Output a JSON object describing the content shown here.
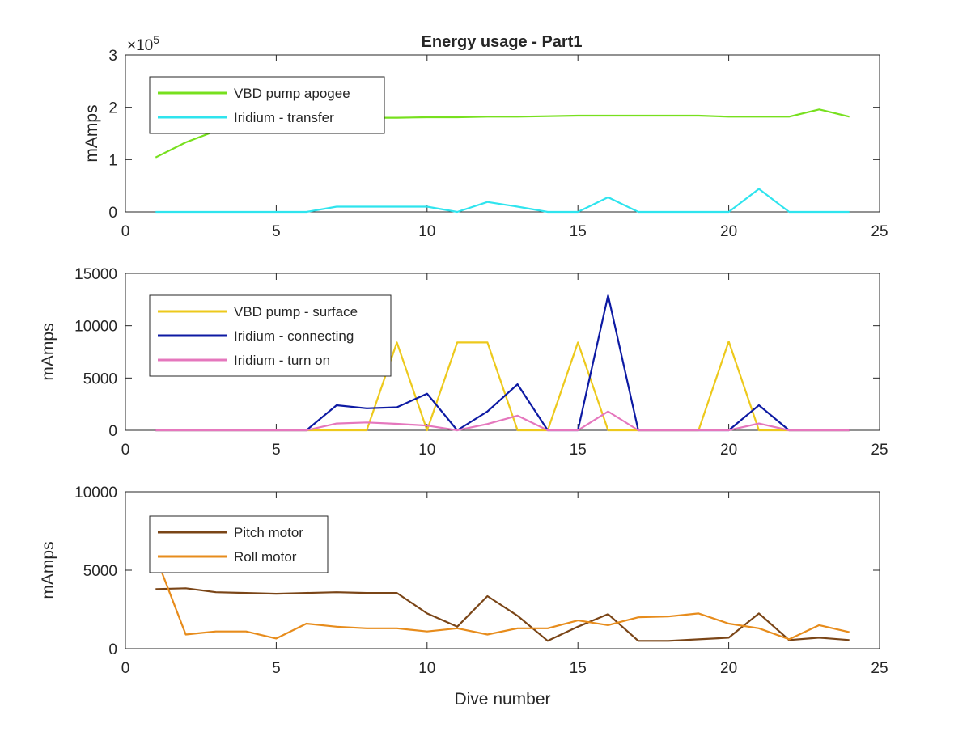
{
  "figure": {
    "title": "Energy usage - Part1",
    "xlabel": "Dive number"
  },
  "chart_data": [
    {
      "type": "line",
      "title": "Energy usage - Part1",
      "xlabel": "",
      "ylabel": "mAmps",
      "xlim": [
        0,
        25
      ],
      "ylim": [
        0,
        3
      ],
      "xticks": [
        0,
        5,
        10,
        15,
        20,
        25
      ],
      "yticks": [
        0,
        1,
        2,
        3
      ],
      "exponent_label": "×10^5",
      "exponent_base": "×10",
      "exponent_power": "5",
      "legend": "top-left",
      "grid": false,
      "x": [
        1,
        2,
        3,
        4,
        5,
        6,
        7,
        8,
        9,
        10,
        11,
        12,
        13,
        14,
        15,
        16,
        17,
        18,
        19,
        20,
        21,
        22,
        23,
        24
      ],
      "series": [
        {
          "name": "VBD pump apogee",
          "color": "#77e01e",
          "values": [
            1.04,
            1.33,
            1.55,
            1.72,
            1.78,
            1.8,
            1.8,
            1.8,
            1.8,
            1.81,
            1.81,
            1.82,
            1.82,
            1.83,
            1.84,
            1.84,
            1.84,
            1.84,
            1.84,
            1.82,
            1.82,
            1.82,
            1.96,
            1.82
          ]
        },
        {
          "name": "Iridium - transfer",
          "color": "#2fe4ee",
          "values": [
            0,
            0,
            0,
            0,
            0,
            0,
            0.1,
            0.1,
            0.1,
            0.1,
            0,
            0.19,
            0.1,
            0,
            0,
            0.28,
            0,
            0,
            0,
            0,
            0.44,
            0,
            0,
            0
          ]
        }
      ]
    },
    {
      "type": "line",
      "title": "",
      "xlabel": "",
      "ylabel": "mAmps",
      "xlim": [
        0,
        25
      ],
      "ylim": [
        0,
        15000
      ],
      "xticks": [
        0,
        5,
        10,
        15,
        20,
        25
      ],
      "yticks": [
        0,
        5000,
        10000,
        15000
      ],
      "legend": "top-left",
      "grid": false,
      "x": [
        1,
        2,
        3,
        4,
        5,
        6,
        7,
        8,
        9,
        10,
        11,
        12,
        13,
        14,
        15,
        16,
        17,
        18,
        19,
        20,
        21,
        22,
        23,
        24
      ],
      "series": [
        {
          "name": "VBD pump - surface",
          "color": "#edc91c",
          "values": [
            0,
            0,
            0,
            0,
            0,
            0,
            0,
            0,
            8400,
            0,
            8400,
            8400,
            0,
            0,
            8400,
            0,
            0,
            0,
            0,
            8500,
            0,
            0,
            0,
            0
          ]
        },
        {
          "name": "Iridium - connecting",
          "color": "#0d1aa3",
          "values": [
            0,
            0,
            0,
            0,
            0,
            0,
            2400,
            2100,
            2200,
            3500,
            0,
            1800,
            4400,
            0,
            0,
            12900,
            0,
            0,
            0,
            0,
            2400,
            0,
            0,
            0
          ]
        },
        {
          "name": "Iridium - turn on",
          "color": "#e577bd",
          "values": [
            0,
            0,
            0,
            0,
            0,
            0,
            650,
            750,
            620,
            450,
            0,
            600,
            1400,
            0,
            0,
            1800,
            0,
            0,
            0,
            0,
            650,
            0,
            0,
            0
          ]
        }
      ]
    },
    {
      "type": "line",
      "title": "",
      "xlabel": "Dive number",
      "ylabel": "mAmps",
      "xlim": [
        0,
        25
      ],
      "ylim": [
        0,
        10000
      ],
      "xticks": [
        0,
        5,
        10,
        15,
        20,
        25
      ],
      "yticks": [
        0,
        5000,
        10000
      ],
      "legend": "top-left",
      "grid": false,
      "x": [
        1,
        2,
        3,
        4,
        5,
        6,
        7,
        8,
        9,
        10,
        11,
        12,
        13,
        14,
        15,
        16,
        17,
        18,
        19,
        20,
        21,
        22,
        23,
        24
      ],
      "series": [
        {
          "name": "Pitch motor",
          "color": "#7a4517",
          "values": [
            3800,
            3850,
            3600,
            3550,
            3500,
            3550,
            3600,
            3550,
            3550,
            2250,
            1400,
            3350,
            2100,
            500,
            1400,
            2200,
            500,
            500,
            600,
            700,
            2250,
            550,
            700,
            550
          ]
        },
        {
          "name": "Roll motor",
          "color": "#e78c1c",
          "values": [
            5900,
            900,
            1100,
            1100,
            650,
            1600,
            1400,
            1300,
            1300,
            1100,
            1300,
            900,
            1300,
            1300,
            1800,
            1500,
            2000,
            2050,
            2250,
            1600,
            1300,
            600,
            1500,
            1050
          ]
        }
      ]
    }
  ]
}
